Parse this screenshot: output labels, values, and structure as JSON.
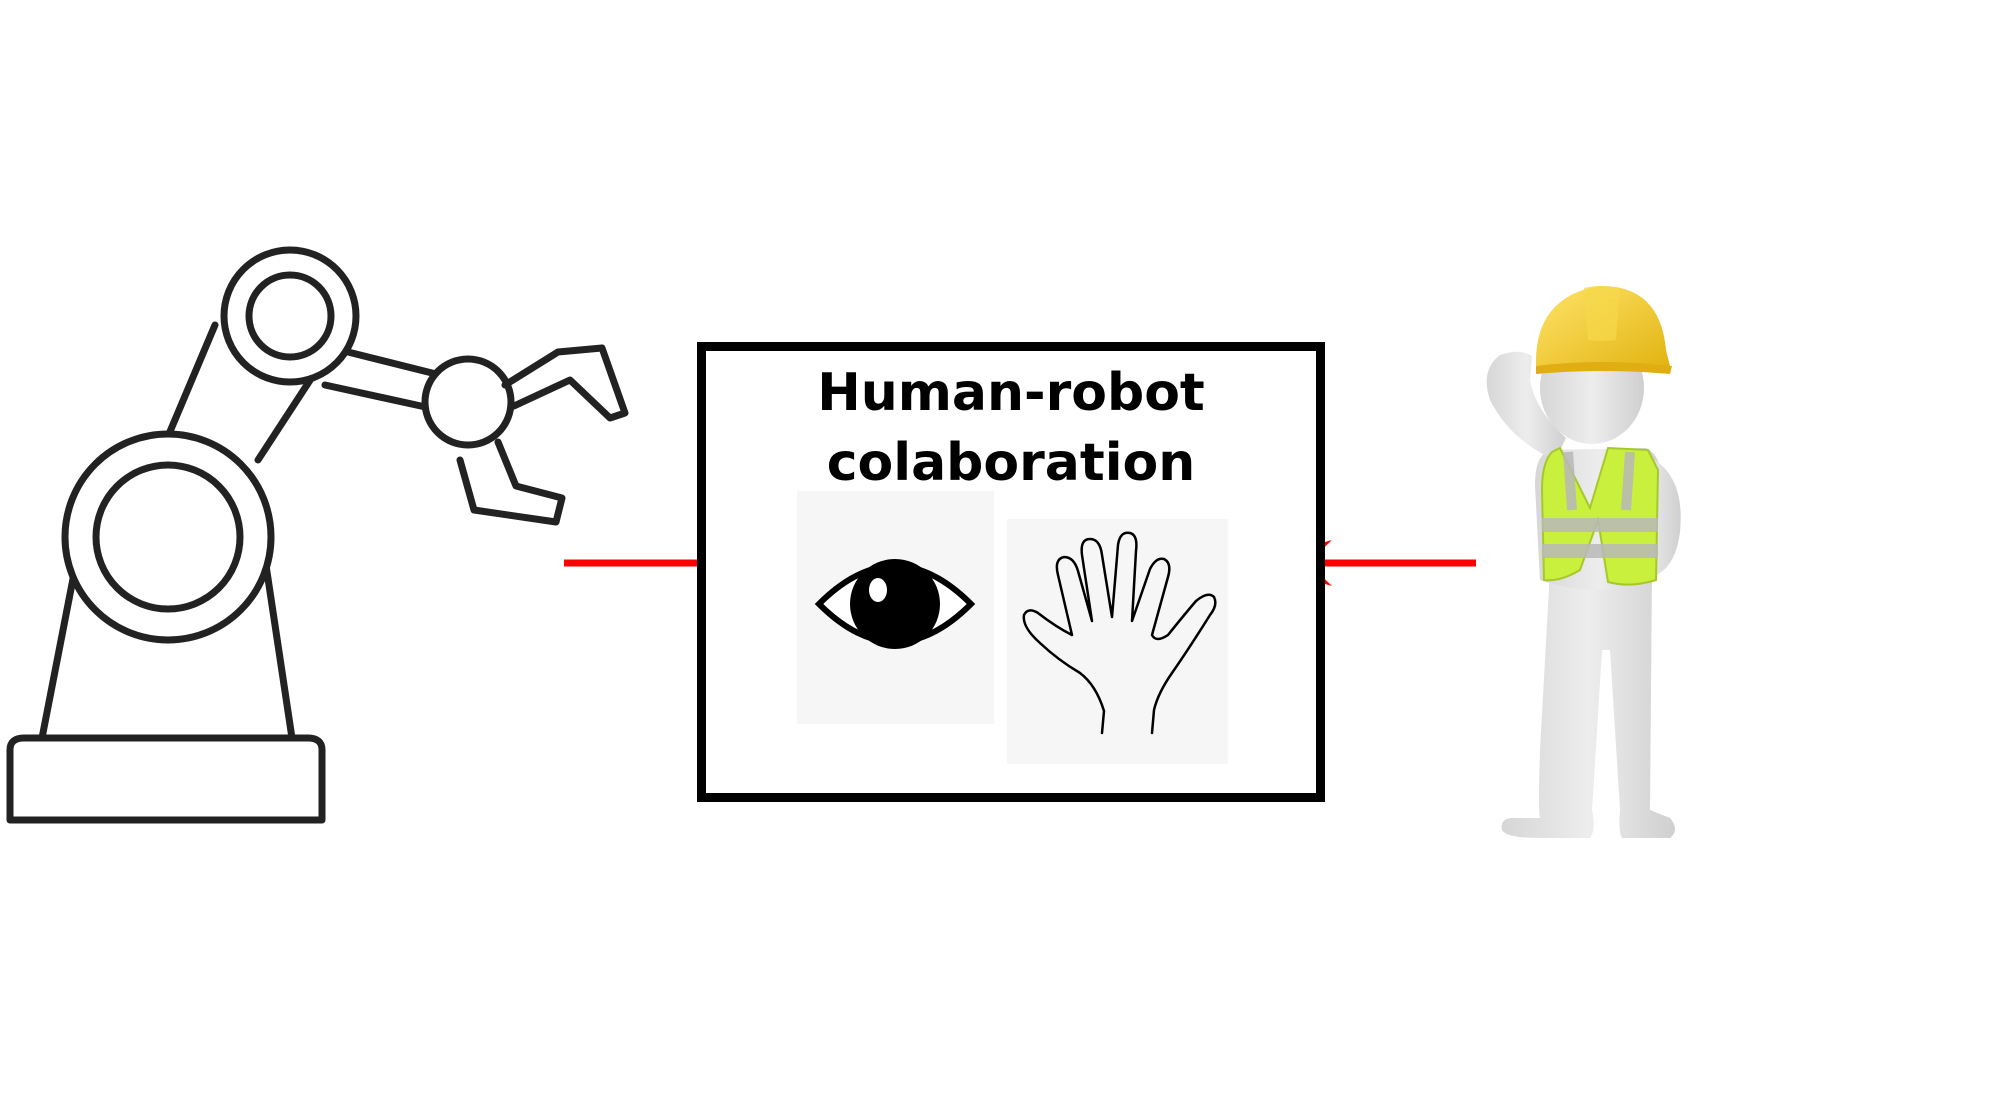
{
  "diagram": {
    "title_line1": "Human-robot",
    "title_line2": "colaboration"
  },
  "nodes": [
    {
      "id": "robot-arm",
      "icon": "robot-arm-icon"
    },
    {
      "id": "collaboration-box",
      "contains": [
        "eye-icon",
        "hand-icon"
      ]
    },
    {
      "id": "worker",
      "icon": "construction-worker-icon"
    }
  ],
  "edges": [
    {
      "from": "robot-arm",
      "to": "collaboration-box"
    },
    {
      "from": "worker",
      "to": "collaboration-box"
    }
  ],
  "colors": {
    "arrow": "#ff0000",
    "outline": "#222222",
    "box_border": "#000000",
    "panel_bg": "#f6f6f6",
    "helmet": "#f2c824",
    "vest": "#c9f03c",
    "figure": "#e6e6e6"
  }
}
